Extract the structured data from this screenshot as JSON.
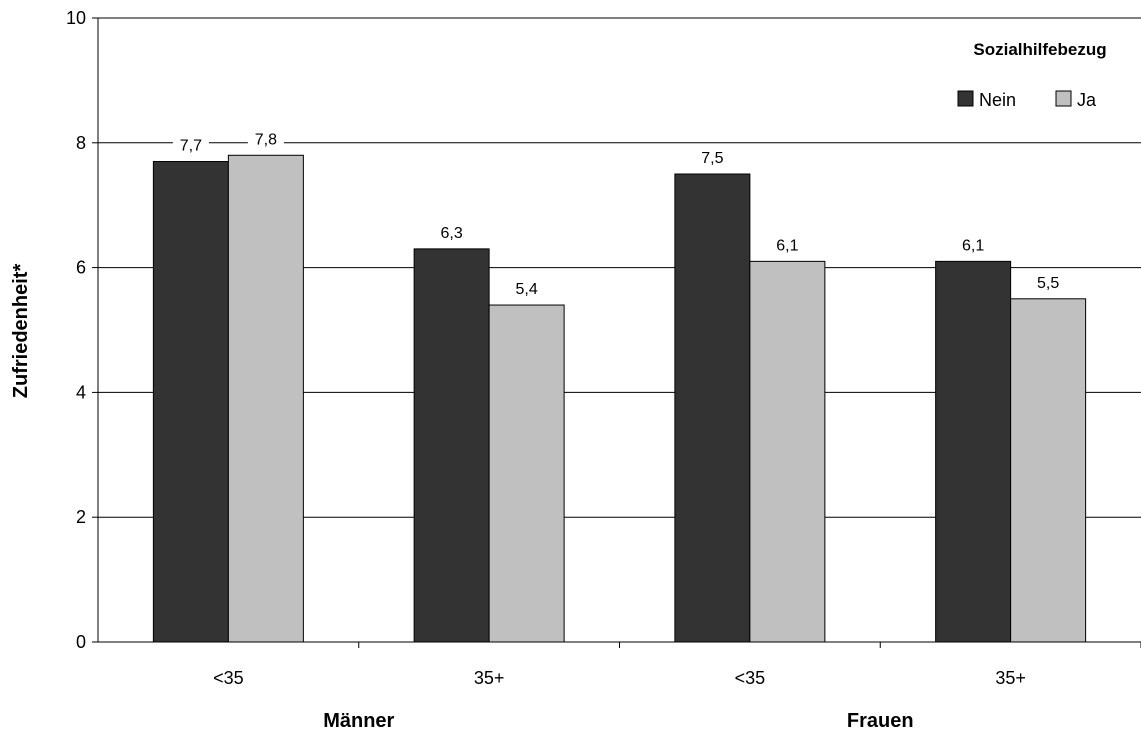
{
  "chart_data": {
    "type": "bar",
    "ylabel": "Zufriedenheit*",
    "ylim": [
      0,
      10
    ],
    "yticks": [
      "0",
      "2",
      "4",
      "6",
      "8",
      "10"
    ],
    "grid": "horizontal",
    "categories": [
      "<35",
      "35+",
      "<35",
      "35+"
    ],
    "groups": [
      {
        "label": "Männer",
        "categories": [
          0,
          1
        ]
      },
      {
        "label": "Frauen",
        "categories": [
          2,
          3
        ]
      }
    ],
    "legend": {
      "title": "Sozialhilfebezug",
      "placement": "top-right"
    },
    "series": [
      {
        "name": "Nein",
        "color": "#333333",
        "values": [
          7.7,
          6.3,
          7.5,
          6.1
        ],
        "labels": [
          "7,7",
          "6,3",
          "7,5",
          "6,1"
        ]
      },
      {
        "name": "Ja",
        "color": "#c0c0c0",
        "values": [
          7.8,
          5.4,
          6.1,
          5.5
        ],
        "labels": [
          "7,8",
          "5,4",
          "6,1",
          "5,5"
        ]
      }
    ]
  }
}
